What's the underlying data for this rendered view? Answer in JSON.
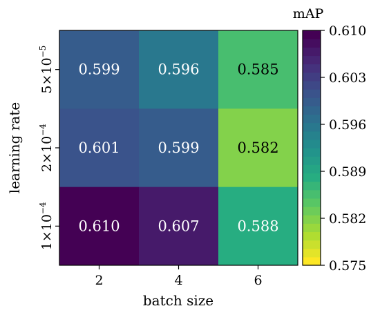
{
  "chart_data": {
    "type": "heatmap",
    "xlabel": "batch size",
    "ylabel": "learning rate",
    "x_categories": [
      "2",
      "4",
      "6"
    ],
    "y_categories": [
      {
        "mantissa": "5×10",
        "exponent": "−5"
      },
      {
        "mantissa": "2×10",
        "exponent": "−4"
      },
      {
        "mantissa": "1×10",
        "exponent": "−4"
      }
    ],
    "values": [
      [
        "0.599",
        "0.596",
        "0.585"
      ],
      [
        "0.601",
        "0.599",
        "0.582"
      ],
      [
        "0.610",
        "0.607",
        "0.588"
      ]
    ],
    "colorbar": {
      "title": "mAP",
      "min": 0.575,
      "max": 0.61,
      "ticks": [
        "0.610",
        "0.603",
        "0.596",
        "0.589",
        "0.582",
        "0.575"
      ],
      "colormap": "viridis",
      "reversed": true,
      "levels": 28
    },
    "grid": false,
    "legend": "right"
  }
}
